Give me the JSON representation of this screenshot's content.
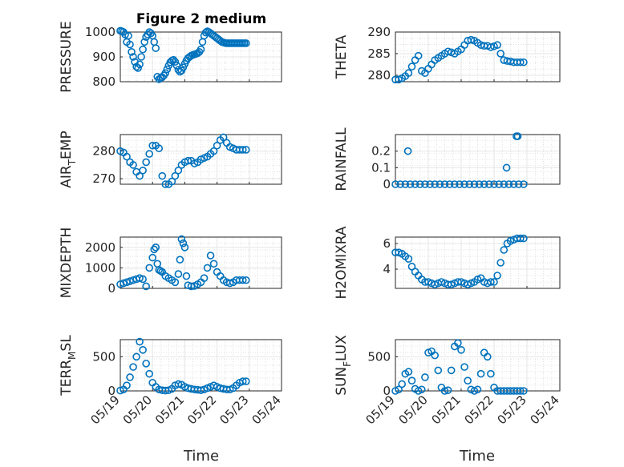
{
  "figure_title": "Figure 2 medium",
  "marker_color": "#0072BD",
  "chart_data": [
    {
      "type": "scatter",
      "ylabel": "PRESSURE",
      "ylim": [
        800,
        1000
      ],
      "yticks": [
        800,
        900,
        1000
      ],
      "xlim": [
        "05/19",
        "05/24"
      ],
      "xticks": [
        "05/19",
        "05/20",
        "05/21",
        "05/22",
        "05/23",
        "05/24"
      ],
      "x": [
        0.0,
        0.05,
        0.1,
        0.15,
        0.2,
        0.25,
        0.3,
        0.35,
        0.4,
        0.45,
        0.5,
        0.55,
        0.6,
        0.65,
        0.7,
        0.75,
        0.8,
        0.85,
        0.9,
        0.95,
        1.0,
        1.05,
        1.1,
        1.15,
        1.2,
        1.25,
        1.3,
        1.35,
        1.4,
        1.45,
        1.5,
        1.55,
        1.6,
        1.65,
        1.7,
        1.75,
        1.8,
        1.85,
        1.9,
        1.95,
        2.0,
        2.05,
        2.1,
        2.15,
        2.2,
        2.25,
        2.3,
        2.35,
        2.4,
        2.45,
        2.5,
        2.55,
        2.6,
        2.65,
        2.7,
        2.75,
        2.8,
        2.85,
        2.9,
        2.95,
        3.0,
        3.05,
        3.1,
        3.15,
        3.2,
        3.25,
        3.3,
        3.35,
        3.4,
        3.45,
        3.5,
        3.55,
        3.6,
        3.65,
        3.7,
        3.75,
        3.8,
        3.85,
        3.9
      ],
      "y": [
        1005,
        1003,
        1000,
        990,
        960,
        985,
        950,
        920,
        900,
        880,
        860,
        855,
        870,
        900,
        930,
        960,
        980,
        990,
        1000,
        995,
        985,
        960,
        935,
        820,
        810,
        815,
        818,
        825,
        835,
        850,
        865,
        878,
        885,
        888,
        880,
        865,
        848,
        840,
        845,
        858,
        872,
        885,
        895,
        900,
        905,
        908,
        910,
        912,
        915,
        920,
        930,
        960,
        985,
        998,
        1003,
        1000,
        995,
        990,
        985,
        980,
        975,
        970,
        965,
        960,
        958,
        956,
        955,
        955,
        955,
        955,
        955,
        955,
        955,
        955,
        955,
        955,
        955,
        955,
        955
      ]
    },
    {
      "type": "scatter",
      "ylabel": "THETA",
      "ylim": [
        278.5,
        290
      ],
      "yticks": [
        280,
        285,
        290
      ],
      "xlim": [
        "05/19",
        "05/24"
      ],
      "xticks": [
        "05/19",
        "05/20",
        "05/21",
        "05/22",
        "05/23",
        "05/24"
      ],
      "x": [
        0.0,
        0.1,
        0.2,
        0.3,
        0.4,
        0.5,
        0.6,
        0.7,
        0.8,
        0.9,
        1.0,
        1.1,
        1.2,
        1.3,
        1.4,
        1.5,
        1.6,
        1.7,
        1.8,
        1.9,
        2.0,
        2.1,
        2.2,
        2.3,
        2.4,
        2.5,
        2.6,
        2.7,
        2.8,
        2.9,
        3.0,
        3.1,
        3.2,
        3.3,
        3.4,
        3.5,
        3.6,
        3.7,
        3.8,
        3.9
      ],
      "y": [
        279,
        279,
        279.3,
        279.8,
        280.5,
        282,
        283.5,
        284.5,
        281,
        280.5,
        281.5,
        282.5,
        283.5,
        284,
        284.5,
        285,
        285.5,
        285.3,
        285,
        285.5,
        286,
        287,
        288,
        288.2,
        288,
        287.5,
        287,
        286.8,
        286.8,
        286.5,
        286.7,
        287,
        285,
        283.5,
        283.3,
        283.2,
        283,
        283,
        283,
        283
      ]
    },
    {
      "type": "scatter",
      "ylabel": "AIR_TEMP",
      "ylim": [
        268,
        286
      ],
      "yticks": [
        270,
        280
      ],
      "xlim": [
        "05/19",
        "05/24"
      ],
      "xticks": [
        "05/19",
        "05/20",
        "05/21",
        "05/22",
        "05/23",
        "05/24"
      ],
      "x": [
        0.0,
        0.1,
        0.2,
        0.3,
        0.4,
        0.5,
        0.6,
        0.7,
        0.8,
        0.9,
        1.0,
        1.1,
        1.2,
        1.3,
        1.4,
        1.5,
        1.6,
        1.7,
        1.8,
        1.9,
        2.0,
        2.1,
        2.2,
        2.3,
        2.4,
        2.5,
        2.6,
        2.7,
        2.8,
        2.9,
        3.0,
        3.1,
        3.2,
        3.3,
        3.4,
        3.5,
        3.6,
        3.7,
        3.8,
        3.9
      ],
      "y": [
        280,
        279.5,
        278,
        276,
        275,
        272.5,
        271,
        273,
        276,
        279,
        282,
        282,
        281,
        271,
        268,
        268,
        269,
        271,
        273,
        275,
        276,
        276.5,
        276.5,
        275.5,
        276,
        277,
        277.5,
        278,
        279,
        280,
        282,
        284,
        285,
        283,
        281.5,
        281,
        280.5,
        280.5,
        280.5,
        280.5
      ]
    },
    {
      "type": "scatter",
      "ylabel": "RAINFALL",
      "ylim": [
        0,
        0.3
      ],
      "yticks": [
        0,
        0.1,
        0.2
      ],
      "xlim": [
        "05/19",
        "05/24"
      ],
      "xticks": [
        "05/19",
        "05/20",
        "05/21",
        "05/22",
        "05/23",
        "05/24"
      ],
      "x": [
        0.0,
        0.15,
        0.3,
        0.45,
        0.6,
        0.75,
        0.9,
        1.05,
        1.2,
        1.35,
        1.5,
        1.65,
        1.8,
        1.95,
        2.1,
        2.25,
        2.4,
        2.55,
        2.7,
        2.85,
        3.0,
        3.15,
        3.3,
        3.45,
        3.6,
        3.75,
        3.9,
        0.38,
        3.38,
        3.68,
        3.72
      ],
      "y": [
        0,
        0,
        0,
        0,
        0,
        0,
        0,
        0,
        0,
        0,
        0,
        0,
        0,
        0,
        0,
        0,
        0,
        0,
        0,
        0,
        0,
        0,
        0,
        0,
        0,
        0,
        0,
        0.2,
        0.1,
        0.29,
        0.29
      ]
    },
    {
      "type": "scatter",
      "ylabel": "MIXDEPTH",
      "ylim": [
        0,
        2500
      ],
      "yticks": [
        0,
        1000,
        2000
      ],
      "xlim": [
        "05/19",
        "05/24"
      ],
      "xticks": [
        "05/19",
        "05/20",
        "05/21",
        "05/22",
        "05/23",
        "05/24"
      ],
      "x": [
        0.0,
        0.1,
        0.2,
        0.3,
        0.4,
        0.5,
        0.6,
        0.7,
        0.8,
        0.9,
        1.0,
        1.05,
        1.1,
        1.15,
        1.2,
        1.25,
        1.3,
        1.4,
        1.5,
        1.6,
        1.7,
        1.8,
        1.85,
        1.9,
        1.95,
        2.0,
        2.05,
        2.1,
        2.2,
        2.3,
        2.4,
        2.5,
        2.6,
        2.7,
        2.8,
        2.9,
        3.0,
        3.1,
        3.2,
        3.3,
        3.4,
        3.5,
        3.6,
        3.7,
        3.8,
        3.9
      ],
      "y": [
        200,
        250,
        300,
        350,
        400,
        450,
        500,
        450,
        100,
        1000,
        1500,
        1900,
        2000,
        1200,
        900,
        850,
        800,
        600,
        500,
        400,
        300,
        700,
        1400,
        2400,
        2200,
        2000,
        600,
        150,
        100,
        120,
        200,
        300,
        500,
        1000,
        1600,
        1200,
        800,
        600,
        400,
        300,
        250,
        300,
        400,
        400,
        400,
        400
      ]
    },
    {
      "type": "scatter",
      "ylabel": "H2OMIXRA",
      "ylim": [
        2.5,
        6.5
      ],
      "yticks": [
        4,
        6
      ],
      "xlim": [
        "05/19",
        "05/24"
      ],
      "xticks": [
        "05/19",
        "05/20",
        "05/21",
        "05/22",
        "05/23",
        "05/24"
      ],
      "x": [
        0.0,
        0.1,
        0.2,
        0.3,
        0.4,
        0.5,
        0.6,
        0.7,
        0.8,
        0.9,
        1.0,
        1.1,
        1.2,
        1.3,
        1.4,
        1.5,
        1.6,
        1.7,
        1.8,
        1.9,
        2.0,
        2.1,
        2.2,
        2.3,
        2.4,
        2.5,
        2.6,
        2.7,
        2.8,
        2.9,
        3.0,
        3.1,
        3.2,
        3.3,
        3.4,
        3.5,
        3.6,
        3.7,
        3.8,
        3.9
      ],
      "y": [
        5.3,
        5.3,
        5.2,
        5.0,
        4.8,
        4.2,
        3.8,
        3.5,
        3.2,
        3.0,
        3.0,
        2.9,
        2.8,
        2.9,
        3.0,
        2.9,
        2.8,
        2.8,
        2.9,
        3.0,
        3.0,
        2.9,
        2.8,
        2.9,
        3.0,
        3.2,
        3.3,
        3.0,
        2.9,
        3.0,
        3.0,
        3.5,
        4.5,
        5.5,
        6.0,
        6.2,
        6.3,
        6.4,
        6.4,
        6.4
      ]
    },
    {
      "type": "scatter",
      "ylabel": "TERR_MSL",
      "ylim": [
        0,
        750
      ],
      "yticks": [
        0,
        500
      ],
      "xlim": [
        "05/19",
        "05/24"
      ],
      "xticks": [
        "05/19",
        "05/20",
        "05/21",
        "05/22",
        "05/23",
        "05/24"
      ],
      "x": [
        0.0,
        0.1,
        0.2,
        0.3,
        0.4,
        0.5,
        0.6,
        0.7,
        0.8,
        0.9,
        1.0,
        1.1,
        1.2,
        1.3,
        1.4,
        1.5,
        1.6,
        1.7,
        1.8,
        1.9,
        2.0,
        2.1,
        2.2,
        2.3,
        2.4,
        2.5,
        2.6,
        2.7,
        2.8,
        2.9,
        3.0,
        3.1,
        3.2,
        3.3,
        3.4,
        3.5,
        3.6,
        3.7,
        3.8,
        3.9
      ],
      "y": [
        5,
        20,
        80,
        200,
        350,
        500,
        720,
        600,
        400,
        250,
        120,
        60,
        20,
        10,
        5,
        10,
        30,
        80,
        100,
        90,
        60,
        40,
        30,
        20,
        15,
        10,
        20,
        40,
        60,
        80,
        60,
        40,
        30,
        20,
        20,
        40,
        80,
        120,
        140,
        140
      ]
    },
    {
      "type": "scatter",
      "ylabel": "SUN_FLUX",
      "ylim": [
        0,
        750
      ],
      "yticks": [
        0,
        500
      ],
      "xlim": [
        "05/19",
        "05/24"
      ],
      "xticks": [
        "05/19",
        "05/20",
        "05/21",
        "05/22",
        "05/23",
        "05/24"
      ],
      "x": [
        0.0,
        0.1,
        0.2,
        0.3,
        0.4,
        0.5,
        0.6,
        0.7,
        0.8,
        0.9,
        1.0,
        1.1,
        1.2,
        1.3,
        1.4,
        1.5,
        1.6,
        1.7,
        1.8,
        1.9,
        2.0,
        2.1,
        2.2,
        2.3,
        2.4,
        2.5,
        2.6,
        2.7,
        2.8,
        2.9,
        3.0,
        3.1,
        3.2,
        3.3,
        3.4,
        3.5,
        3.6,
        3.7,
        3.8,
        3.9
      ],
      "y": [
        0,
        20,
        100,
        250,
        280,
        150,
        30,
        0,
        20,
        200,
        560,
        580,
        520,
        300,
        50,
        0,
        10,
        300,
        650,
        700,
        600,
        350,
        150,
        20,
        0,
        20,
        250,
        560,
        500,
        250,
        50,
        0,
        0,
        0,
        0,
        0,
        0,
        0,
        0,
        0
      ]
    }
  ],
  "x_axis_label": "Time"
}
